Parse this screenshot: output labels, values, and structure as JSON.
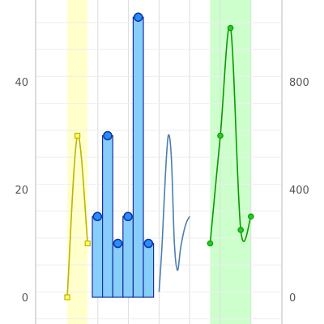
{
  "chart_data": {
    "type": "line",
    "title": "",
    "xlabel": "",
    "ylabel": "",
    "ylim": [
      0,
      48
    ],
    "yticks": [
      0,
      20,
      40
    ],
    "y2lim": [
      0,
      960
    ],
    "y2ticks": [
      0,
      400,
      800
    ],
    "grid": true,
    "colors": {
      "grid": "#dddddd",
      "axis": "#bbbbbb",
      "yellow_line": "#bdb400",
      "yellow_marker_fill": "#ffff66",
      "yellow_band": "#ffffcc",
      "bar_fill": "#87cefa",
      "bar_stroke": "#1a2fa0",
      "bar_marker_fill": "#1e90ff",
      "smooth_line": "#4a7fb0",
      "green_line": "#0a9900",
      "green_marker_fill": "#22cc22",
      "green_band": "#ccffcc"
    },
    "yellow_band": {
      "x": [
        0,
        2
      ]
    },
    "green_band": {
      "x": [
        14,
        18
      ]
    },
    "series": [
      {
        "style": "yellow-line-square-markers",
        "x": [
          0,
          1,
          2
        ],
        "y": [
          0,
          30,
          10
        ]
      },
      {
        "style": "bars-with-circle-markers",
        "x": [
          3,
          4,
          5,
          6,
          7,
          8
        ],
        "y": [
          15,
          30,
          10,
          15,
          52,
          10
        ]
      },
      {
        "style": "smooth-line",
        "x": [
          9.0,
          9.3,
          9.6,
          9.9,
          10.2,
          10.5,
          10.8,
          11.1,
          11.4,
          11.7,
          12.0
        ],
        "y": [
          1,
          10,
          22,
          30,
          26,
          10,
          5,
          9,
          12,
          14,
          15
        ]
      },
      {
        "style": "green-line-circle-markers",
        "axis": "right",
        "x": [
          14,
          15,
          16,
          17,
          18
        ],
        "y": [
          200,
          600,
          1000,
          250,
          300
        ]
      }
    ]
  }
}
